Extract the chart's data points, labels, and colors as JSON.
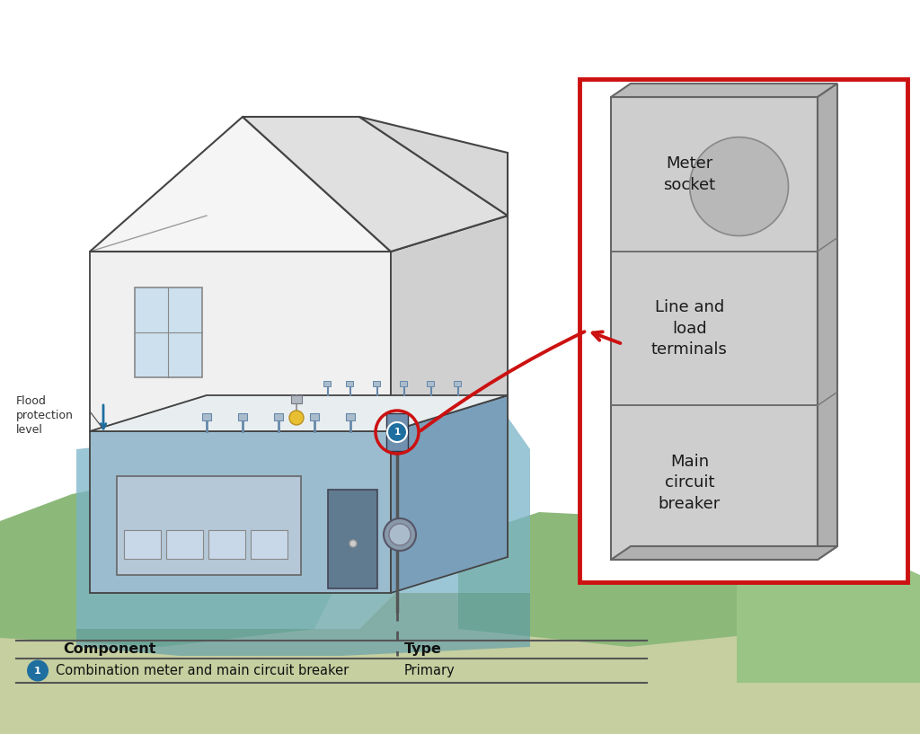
{
  "figure_width": 10.24,
  "figure_height": 8.17,
  "dpi": 100,
  "bg_color": "#ffffff",
  "flood_label": "Flood\nprotection\nlevel",
  "component_header": "Component",
  "type_header": "Type",
  "component_name": "Combination meter and main circuit breaker",
  "component_type": "Primary",
  "meter_sections": [
    "Meter\nsocket",
    "Line and\nload\nterminals",
    "Main\ncircuit\nbreaker"
  ],
  "red_color": "#cc1111",
  "circle_color": "#1e6fa0",
  "grass_color": "#8cb87a",
  "grass_dark": "#6da05a",
  "water_color": "#7ab4c8",
  "water_dark": "#5899ad",
  "gray_light": "#e8e8e8",
  "gray_med": "#d0d0d0",
  "gray_dark": "#b0b0b0",
  "blue_wall": "#9bbcce",
  "blue_wall_dark": "#7a9fba",
  "house_line": "#444444",
  "meter_front_color": "#cecece",
  "meter_side_color": "#b0b0b0",
  "meter_top_color": "#bbbbbb",
  "sock_circle_color": "#b8b8b8"
}
